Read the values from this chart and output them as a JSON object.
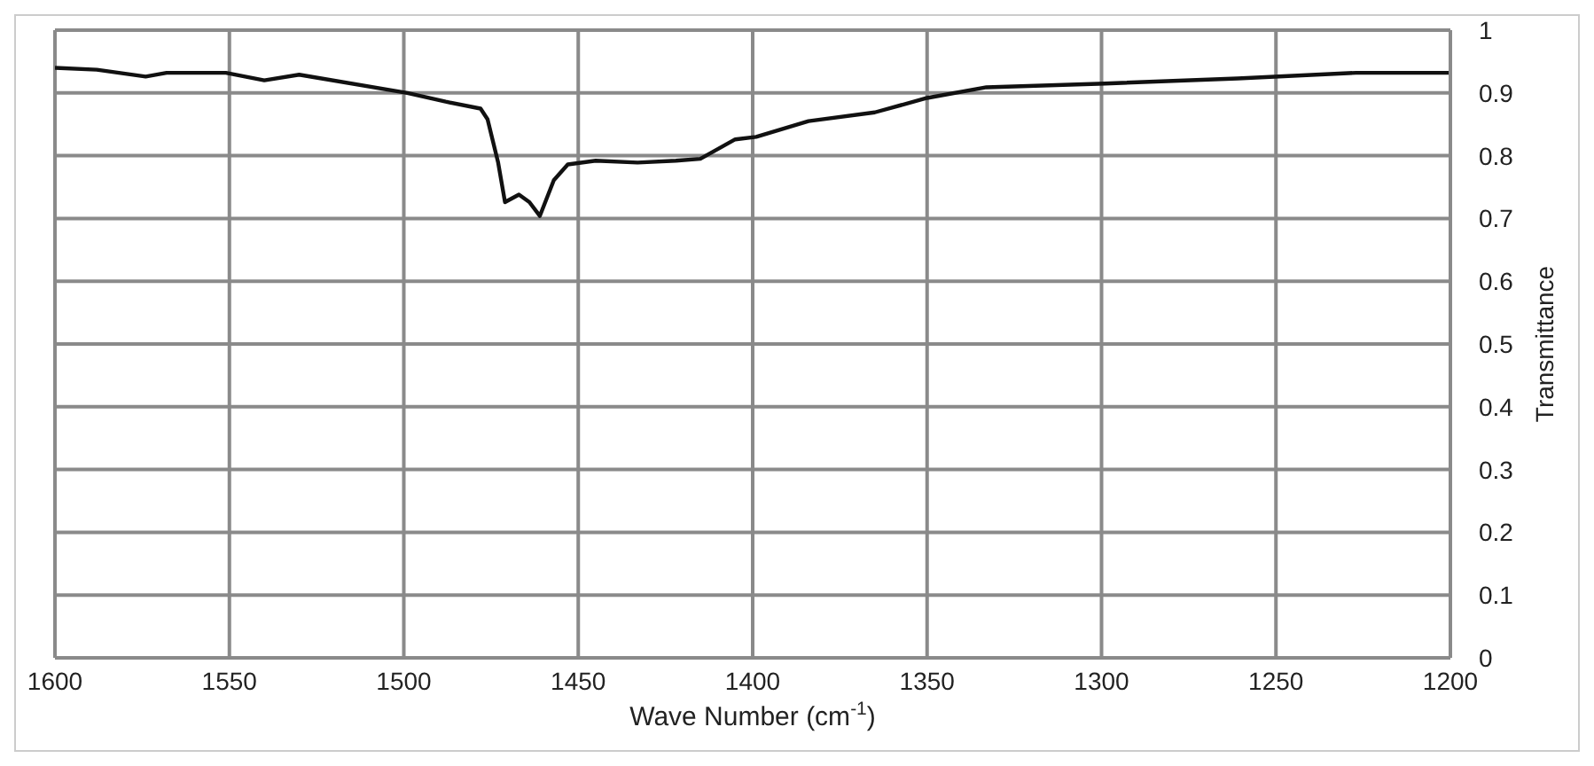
{
  "chart_data": {
    "type": "line",
    "xlabel": "Wave Number (cm$^{-1}$)",
    "ylabel": "Transmittance",
    "xlim": [
      1600,
      1200
    ],
    "xticks": [
      1600,
      1550,
      1500,
      1450,
      1400,
      1350,
      1300,
      1250,
      1200
    ],
    "ylim": [
      0,
      1
    ],
    "yticks": [
      0,
      0.1,
      0.2,
      0.3,
      0.4,
      0.5,
      0.6,
      0.7,
      0.8,
      0.9,
      1
    ],
    "grid": true,
    "legend": false,
    "marker": "none",
    "line_style": "solid",
    "series": [
      {
        "color": "#111111",
        "x": [
          1600,
          1588,
          1574,
          1568,
          1551,
          1540,
          1530,
          1499,
          1488,
          1478,
          1476,
          1473,
          1471,
          1467,
          1464,
          1461,
          1457,
          1453,
          1445,
          1433,
          1422,
          1415,
          1405,
          1399,
          1384,
          1365,
          1350,
          1333,
          1299,
          1261,
          1227,
          1200
        ],
        "values": [
          0.94,
          0.937,
          0.926,
          0.932,
          0.932,
          0.92,
          0.929,
          0.9,
          0.886,
          0.875,
          0.858,
          0.79,
          0.726,
          0.738,
          0.726,
          0.704,
          0.761,
          0.786,
          0.792,
          0.789,
          0.792,
          0.795,
          0.826,
          0.83,
          0.855,
          0.869,
          0.892,
          0.909,
          0.915,
          0.923,
          0.932,
          0.932
        ]
      }
    ]
  }
}
